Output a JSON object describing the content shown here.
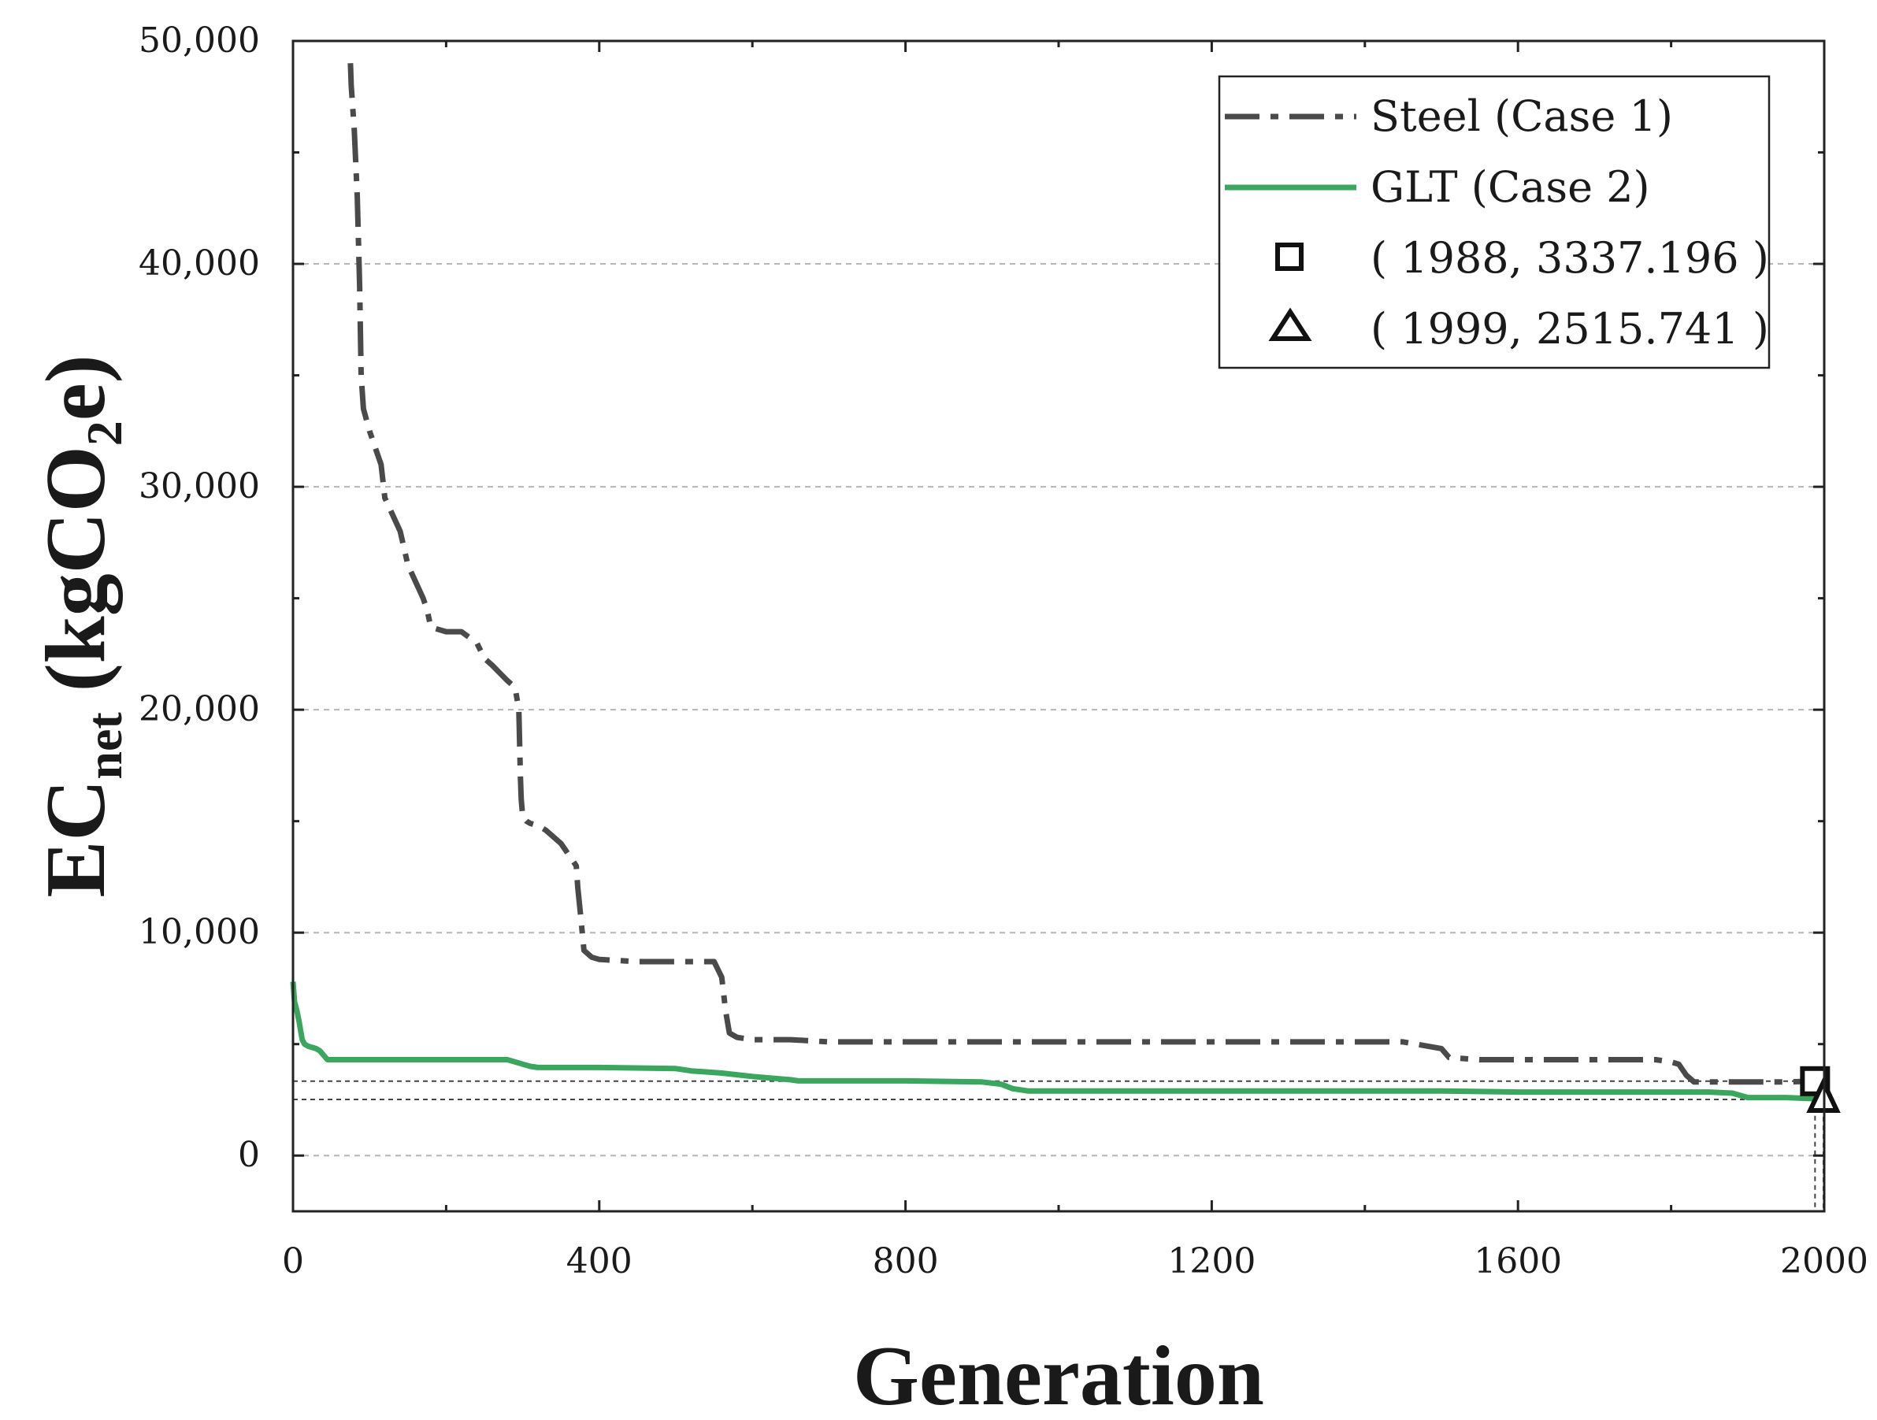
{
  "chart_data": {
    "type": "line",
    "title": "",
    "xlabel": "Generation",
    "ylabel": {
      "main": "EC",
      "main_sub": "net",
      "unit_open": "(kgCO",
      "unit_sub": "2",
      "unit_close": "e)"
    },
    "xlim": [
      0,
      2000
    ],
    "ylim": [
      -2500,
      50000
    ],
    "x_ticks": [
      0,
      400,
      800,
      1200,
      1600,
      2000
    ],
    "x_tick_labels": [
      "0",
      "400",
      "800",
      "1200",
      "1600",
      "2000"
    ],
    "y_ticks": [
      0,
      10000,
      20000,
      30000,
      40000,
      50000
    ],
    "y_tick_labels": [
      "0",
      "10,000",
      "20,000",
      "30,000",
      "40,000",
      "50,000"
    ],
    "grid": "horizontal dashed",
    "legend": {
      "position": "top-right",
      "entries": [
        {
          "label": "Steel (Case 1)",
          "kind": "dash-dot"
        },
        {
          "label": "GLT (Case 2)",
          "kind": "solid"
        },
        {
          "label": "( 1988, 3337.196 )",
          "kind": "square"
        },
        {
          "label": "( 1999, 2515.741 )",
          "kind": "triangle"
        }
      ]
    },
    "series": [
      {
        "name": "Steel (Case 1)",
        "color": "#4a4a4a",
        "style": "dash-dot",
        "x": [
          75,
          76,
          80,
          84,
          87,
          89,
          92,
          100,
          110,
          115,
          120,
          140,
          150,
          170,
          175,
          180,
          200,
          220,
          240,
          250,
          260,
          280,
          290,
          295,
          297,
          298,
          300,
          305,
          310,
          320,
          330,
          350,
          360,
          370,
          372,
          375,
          380,
          390,
          400,
          450,
          500,
          550,
          560,
          565,
          570,
          575,
          580,
          600,
          650,
          700,
          800,
          900,
          1000,
          1200,
          1400,
          1450,
          1500,
          1510,
          1550,
          1600,
          1700,
          1750,
          1780,
          1800,
          1810,
          1820,
          1830,
          1850,
          1900,
          1950,
          1988
        ],
        "y": [
          49000,
          48000,
          46000,
          43000,
          39000,
          35000,
          33500,
          32500,
          31500,
          31000,
          29500,
          28000,
          26500,
          25000,
          24500,
          23700,
          23500,
          23500,
          23000,
          22300,
          22000,
          21300,
          21000,
          20000,
          17000,
          16000,
          15200,
          15000,
          14900,
          14800,
          14600,
          14000,
          13500,
          13000,
          12000,
          11000,
          9200,
          8900,
          8800,
          8700,
          8700,
          8700,
          8000,
          6500,
          5500,
          5400,
          5300,
          5200,
          5200,
          5100,
          5100,
          5100,
          5100,
          5100,
          5100,
          5100,
          4800,
          4400,
          4300,
          4300,
          4300,
          4300,
          4300,
          4200,
          4100,
          3600,
          3300,
          3300,
          3300,
          3300,
          3337.196
        ]
      },
      {
        "name": "GLT (Case 2)",
        "color": "#3aa65e",
        "style": "solid",
        "x": [
          0,
          2,
          5,
          8,
          10,
          12,
          15,
          20,
          30,
          35,
          40,
          45,
          50,
          100,
          200,
          280,
          300,
          310,
          320,
          400,
          500,
          520,
          560,
          600,
          650,
          660,
          700,
          800,
          900,
          925,
          940,
          960,
          1000,
          1100,
          1200,
          1300,
          1400,
          1500,
          1600,
          1700,
          1800,
          1850,
          1880,
          1890,
          1900,
          1950,
          1990,
          1999
        ],
        "y": [
          7800,
          6900,
          6500,
          6000,
          5600,
          5200,
          5000,
          4900,
          4800,
          4700,
          4500,
          4300,
          4300,
          4300,
          4300,
          4300,
          4100,
          4000,
          3950,
          3950,
          3900,
          3800,
          3700,
          3550,
          3400,
          3350,
          3350,
          3350,
          3300,
          3200,
          3000,
          2900,
          2900,
          2900,
          2900,
          2900,
          2900,
          2900,
          2850,
          2850,
          2850,
          2850,
          2800,
          2700,
          2600,
          2600,
          2550,
          2515.741
        ]
      }
    ],
    "markers": [
      {
        "label": "( 1988, 3337.196 )",
        "shape": "square",
        "x": 1988,
        "y": 3337.196
      },
      {
        "label": "( 1999, 2515.741 )",
        "shape": "triangle",
        "x": 1999,
        "y": 2515.741
      }
    ]
  }
}
